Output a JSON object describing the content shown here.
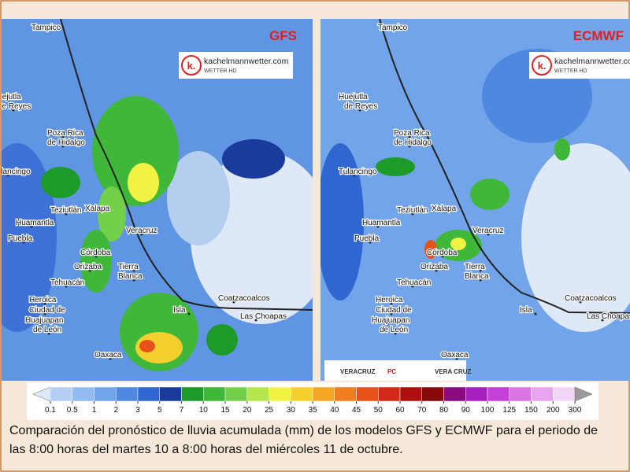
{
  "maps": [
    {
      "model": "GFS",
      "labels": [
        "Tampico",
        "Huejutla",
        "de Reyes",
        "Poza Rica",
        "de Hidalgo",
        "Tulancingo",
        "Teziutlán",
        "Xalapa",
        "Huamantla",
        "Puebla",
        "Veracruz",
        "Córdoba",
        "Orizaba",
        "Tehuacán",
        "Tierra",
        "Blanca",
        "Heroica",
        "Ciudad de",
        "Huajuapan",
        "de León",
        "Isla",
        "Coatzacoalcos",
        "Las Choapas",
        "Oaxaca"
      ]
    },
    {
      "model": "ECMWF",
      "labels": [
        "Tampico",
        "Huejutla",
        "de Reyes",
        "Poza Rica",
        "de Hidalgo",
        "Tulancingo",
        "Teziutlán",
        "Xalapa",
        "Huamantla",
        "Puebla",
        "Veracruz",
        "Córdoba",
        "Orizaba",
        "Tehuacán",
        "Tierra",
        "Blanca",
        "Heroica",
        "Ciudad de",
        "Huajuapan",
        "de León",
        "Isla",
        "Coatzacoalcos",
        "Las Choapas",
        "Oaxaca"
      ]
    }
  ],
  "watermark": {
    "logo": "k.",
    "site": "kachelmannwetter.com",
    "sub": "WETTER HD"
  },
  "sponsors": [
    "VERACRUZ",
    "PC",
    "VERA CRUZ"
  ],
  "colorbar": {
    "ticks": [
      0.1,
      0.5,
      1,
      2,
      3,
      5,
      7,
      10,
      15,
      20,
      25,
      30,
      35,
      40,
      45,
      50,
      60,
      70,
      80,
      90,
      100,
      125,
      150,
      200,
      300
    ],
    "colors": [
      "#dde8f8",
      "#b4cff2",
      "#92bbf0",
      "#72a4ea",
      "#5088e0",
      "#3066cf",
      "#1a3a9c",
      "#1c9a2a",
      "#3fb83a",
      "#74d04a",
      "#b6e64e",
      "#f2f244",
      "#f4cf2e",
      "#f4a624",
      "#f07e1e",
      "#e6521a",
      "#d22a18",
      "#ae1010",
      "#880a0a",
      "#8a0a80",
      "#a61ebe",
      "#c440d6",
      "#d974e2",
      "#e8a4ee",
      "#f2d4f4",
      "#d4d4d4",
      "#9a9a9a"
    ]
  },
  "caption": "Comparación del pronóstico de lluvia acumulada (mm) de los modelos GFS y ECMWF para el periodo de las 8:00 horas del martes 10 a 8:00 horas del miércoles 11 de octubre."
}
